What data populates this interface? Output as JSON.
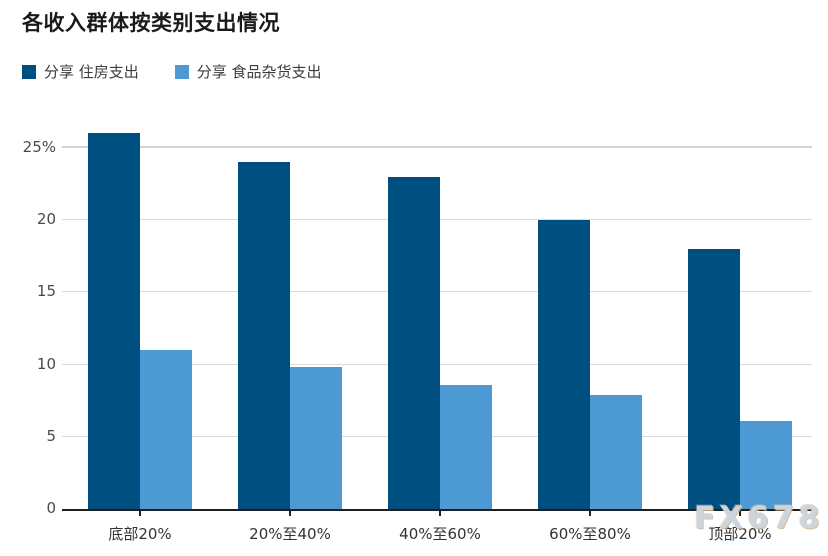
{
  "title": "各收入群体按类别支出情况",
  "watermark": "FX678",
  "legend": [
    {
      "label": "分享 住房支出",
      "color": "#004f81"
    },
    {
      "label": "分享 食品杂货支出",
      "color": "#4d99d4"
    }
  ],
  "chart_data": {
    "type": "bar",
    "title": "各收入群体按类别支出情况",
    "categories": [
      "底部20%",
      "20%至40%",
      "40%至60%",
      "60%至80%",
      "顶部20%"
    ],
    "series": [
      {
        "name": "分享 住房支出",
        "color": "#004f81",
        "values": [
          26,
          24,
          23,
          20,
          18
        ]
      },
      {
        "name": "分享 食品杂货支出",
        "color": "#4d99d4",
        "values": [
          11,
          9.8,
          8.6,
          7.9,
          6.1
        ]
      }
    ],
    "y_ticks": [
      {
        "value": 0,
        "label": "0"
      },
      {
        "value": 5,
        "label": "5"
      },
      {
        "value": 10,
        "label": "10"
      },
      {
        "value": 15,
        "label": "15"
      },
      {
        "value": 20,
        "label": "20"
      },
      {
        "value": 25,
        "label": "25%"
      }
    ],
    "xlabel": "",
    "ylabel": "",
    "ylim": [
      0,
      26.9
    ],
    "grid": "horizontal",
    "legend_position": "top-left"
  }
}
